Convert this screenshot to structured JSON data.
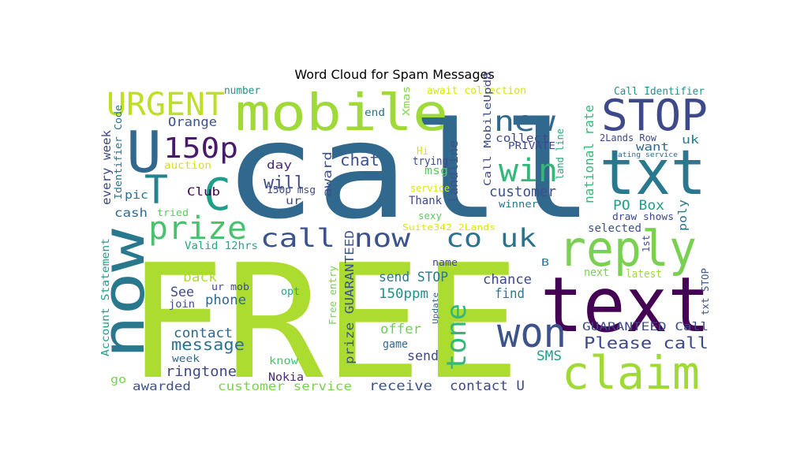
{
  "chart_data": {
    "type": "wordcloud",
    "title": "Word Cloud for Spam Messages",
    "background": "#ffffff",
    "colormap": "viridis",
    "words": [
      {
        "text": "call",
        "color": "#31688e"
      },
      {
        "text": "FREE",
        "color": "#addc30"
      },
      {
        "text": "mobile",
        "color": "#a0da39"
      },
      {
        "text": "text",
        "color": "#440154"
      },
      {
        "text": "txt",
        "color": "#2a788e"
      },
      {
        "text": "now",
        "color": "#2a788e"
      },
      {
        "text": "claim",
        "color": "#a0da39"
      },
      {
        "text": "reply",
        "color": "#7ad151"
      },
      {
        "text": "won",
        "color": "#3b528b"
      },
      {
        "text": "STOP",
        "color": "#3e4989"
      },
      {
        "text": "U",
        "color": "#31688e"
      },
      {
        "text": "URGENT",
        "color": "#bddf26"
      },
      {
        "text": "T",
        "color": "#26828e"
      },
      {
        "text": "C",
        "color": "#1f9e89"
      },
      {
        "text": "150p",
        "color": "#481a6c"
      },
      {
        "text": "prize",
        "color": "#4ac16d"
      },
      {
        "text": "call now",
        "color": "#3b528b"
      },
      {
        "text": "co uk",
        "color": "#2c728e"
      },
      {
        "text": "new",
        "color": "#31688e"
      },
      {
        "text": "win",
        "color": "#35b779"
      },
      {
        "text": "tone",
        "color": "#35b779"
      },
      {
        "text": "Please call",
        "color": "#3e4989"
      },
      {
        "text": "chat",
        "color": "#3b528b"
      },
      {
        "text": "will",
        "color": "#3e4989"
      },
      {
        "text": "message",
        "color": "#2c728e"
      },
      {
        "text": "customer",
        "color": "#3b528b"
      },
      {
        "text": "PO Box",
        "color": "#1f9e89"
      },
      {
        "text": "send STOP",
        "color": "#2a788e"
      },
      {
        "text": "150ppm",
        "color": "#21918c"
      },
      {
        "text": "chance",
        "color": "#3e4989"
      },
      {
        "text": "find",
        "color": "#2a788e"
      },
      {
        "text": "offer",
        "color": "#6ece58"
      },
      {
        "text": "game",
        "color": "#31688e"
      },
      {
        "text": "send",
        "color": "#3e4989"
      },
      {
        "text": "SMS",
        "color": "#1f9e89"
      },
      {
        "text": "ringtone",
        "color": "#3e4989"
      },
      {
        "text": "contact",
        "color": "#31688e"
      },
      {
        "text": "phone",
        "color": "#31688e"
      },
      {
        "text": "back",
        "color": "#addc30"
      },
      {
        "text": "See",
        "color": "#3e4989"
      },
      {
        "text": "customer service",
        "color": "#7ad151"
      },
      {
        "text": "receive",
        "color": "#3b528b"
      },
      {
        "text": "contact U",
        "color": "#3e4989"
      },
      {
        "text": "awarded",
        "color": "#3b528b"
      },
      {
        "text": "go",
        "color": "#7ad151"
      },
      {
        "text": "Nokia",
        "color": "#482878"
      },
      {
        "text": "know",
        "color": "#4ac16d"
      },
      {
        "text": "week",
        "color": "#31688e"
      },
      {
        "text": "GUARANTEED Call",
        "color": "#3e4989"
      },
      {
        "text": "prize GUARANTEED",
        "color": "#3b528b"
      },
      {
        "text": "Orange",
        "color": "#3b528b"
      },
      {
        "text": "every week",
        "color": "#3e4989"
      },
      {
        "text": "Club",
        "color": "#440154"
      },
      {
        "text": "cash",
        "color": "#31688e"
      },
      {
        "text": "pic",
        "color": "#2c728e"
      },
      {
        "text": "day",
        "color": "#482878"
      },
      {
        "text": "collect",
        "color": "#3e4989"
      },
      {
        "text": "want",
        "color": "#31688e"
      },
      {
        "text": "uk",
        "color": "#2a788e"
      },
      {
        "text": "poly",
        "color": "#2c728e"
      },
      {
        "text": "national rate",
        "color": "#35b779"
      },
      {
        "text": "award",
        "color": "#3b528b"
      },
      {
        "text": "landline",
        "color": "#3b528b"
      },
      {
        "text": "trying",
        "color": "#3e4989"
      },
      {
        "text": "msg",
        "color": "#5ec962"
      },
      {
        "text": "Thank",
        "color": "#3e4989"
      },
      {
        "text": "sexy",
        "color": "#5ec962"
      },
      {
        "text": "winner",
        "color": "#2c728e"
      },
      {
        "text": "selected",
        "color": "#3b528b"
      },
      {
        "text": "1st",
        "color": "#3b528b"
      },
      {
        "text": "next",
        "color": "#7ad151"
      },
      {
        "text": "latest",
        "color": "#a0da39"
      },
      {
        "text": "txt STOP",
        "color": "#3b528b"
      },
      {
        "text": "B",
        "color": "#2c728e"
      },
      {
        "text": "opt",
        "color": "#22a884"
      },
      {
        "text": "join",
        "color": "#3e4989"
      },
      {
        "text": "ur mob",
        "color": "#3e4989"
      },
      {
        "text": "ur",
        "color": "#3e4989"
      },
      {
        "text": "150p msg",
        "color": "#3e4989"
      },
      {
        "text": "name",
        "color": "#3e4989"
      },
      {
        "text": "Update",
        "color": "#31688e"
      },
      {
        "text": "Free entry",
        "color": "#7ad151"
      },
      {
        "text": "Account Statement",
        "color": "#1f9e89"
      },
      {
        "text": "Valid 12hrs",
        "color": "#22a884"
      },
      {
        "text": "tried",
        "color": "#5ec962"
      },
      {
        "text": "auction",
        "color": "#d8e219"
      },
      {
        "text": "Identifier Code",
        "color": "#2c728e"
      },
      {
        "text": "Hi",
        "color": "#d8e219"
      },
      {
        "text": "service",
        "color": "#d8e219"
      },
      {
        "text": "Suite342 2Lands",
        "color": "#d8e219"
      },
      {
        "text": "number",
        "color": "#21918c"
      },
      {
        "text": "end",
        "color": "#2c728e"
      },
      {
        "text": "Xmas",
        "color": "#86d549"
      },
      {
        "text": "await collection",
        "color": "#d8e219"
      },
      {
        "text": "Call MobileUpd8",
        "color": "#3e4989"
      },
      {
        "text": "PRIVATE",
        "color": "#3e4989"
      },
      {
        "text": "land line",
        "color": "#22a884"
      },
      {
        "text": "2Lands Row",
        "color": "#3e4989"
      },
      {
        "text": "dating service",
        "color": "#31688e"
      },
      {
        "text": "Call Identifier",
        "color": "#21918c"
      },
      {
        "text": "draw shows",
        "color": "#3e4989"
      }
    ]
  }
}
